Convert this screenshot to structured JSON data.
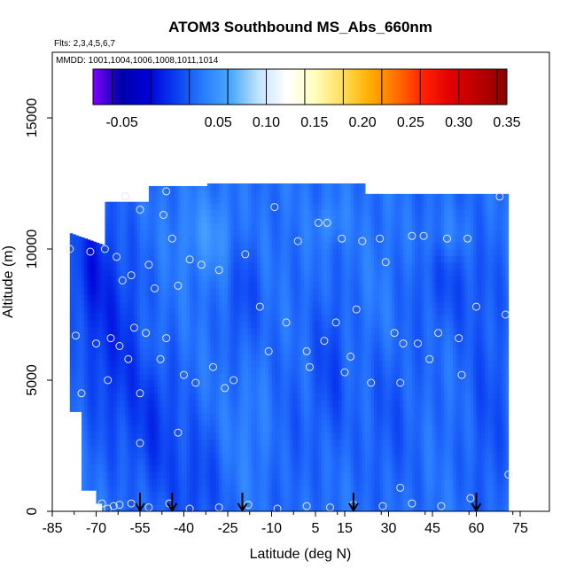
{
  "chart_data": {
    "type": "heatmap",
    "title": "ATOM3 Southbound MS_Abs_660nm",
    "flights_label": "Flts: 2,3,4,5,6,7",
    "dates_label": "MMDD: 1001,1004,1006,1008,1011,1014",
    "xlabel": "Latitude (deg N)",
    "ylabel": "Altitude (m)",
    "xlim": [
      -85,
      85
    ],
    "ylim": [
      0,
      17500
    ],
    "x_ticks": [
      -85,
      -70,
      -55,
      -40,
      -25,
      -10,
      5,
      15,
      30,
      45,
      60,
      75
    ],
    "x_tick_labels": [
      "-85",
      "-70",
      "-55",
      "-40",
      "-25",
      "-10",
      "5",
      "15",
      "30",
      "45",
      "60",
      "75"
    ],
    "y_ticks": [
      0,
      5000,
      10000,
      15000
    ],
    "y_tick_labels": [
      "0",
      "5000",
      "10000",
      "15000"
    ],
    "colorbar": {
      "range": [
        -0.08,
        0.35
      ],
      "tick_values": [
        -0.05,
        0.05,
        0.1,
        0.15,
        0.2,
        0.25,
        0.3,
        0.35
      ],
      "tick_labels": [
        "-0.05",
        "0.05",
        "0.10",
        "0.15",
        "0.20",
        "0.25",
        "0.30",
        "0.35"
      ],
      "segment_colors": [
        "#7f00ff",
        "#0000a8",
        "#0000d8",
        "#0a3ef0",
        "#2a7cff",
        "#4aa8ff",
        "#bfe4ff",
        "#ffffff",
        "#ffffc0",
        "#ffe060",
        "#ffb000",
        "#ff7000",
        "#ff2000",
        "#e00000",
        "#b80000",
        "#8b0000"
      ],
      "divider_values": [
        -0.06,
        -0.02,
        0.02,
        0.06,
        0.1,
        0.14,
        0.18,
        0.22,
        0.26,
        0.3,
        0.34
      ]
    },
    "field": {
      "lat_range": [
        -79,
        71
      ],
      "alt_range": [
        0,
        12500
      ],
      "base_value": 0.03,
      "low_regions": [
        {
          "lat": -64,
          "alt": 6500,
          "lat_w": 10,
          "alt_w": 4000,
          "amp": -0.03
        },
        {
          "lat": -50,
          "alt": 3500,
          "lat_w": 8,
          "alt_w": 3000,
          "amp": -0.025
        },
        {
          "lat": -35,
          "alt": 1000,
          "lat_w": 10,
          "alt_w": 2500,
          "amp": -0.02
        },
        {
          "lat": -72,
          "alt": 9500,
          "lat_w": 6,
          "alt_w": 2500,
          "amp": -0.03
        },
        {
          "lat": -20,
          "alt": 8500,
          "lat_w": 6,
          "alt_w": 3000,
          "amp": -0.02
        },
        {
          "lat": 10,
          "alt": 5500,
          "lat_w": 6,
          "alt_w": 3000,
          "amp": -0.02
        },
        {
          "lat": 50,
          "alt": 9500,
          "lat_w": 12,
          "alt_w": 2500,
          "amp": -0.02
        },
        {
          "lat": 30,
          "alt": 4500,
          "lat_w": 10,
          "alt_w": 4000,
          "amp": -0.015
        },
        {
          "lat": -5,
          "alt": 2500,
          "lat_w": 8,
          "alt_w": 4000,
          "amp": -0.01
        },
        {
          "lat": 64,
          "alt": 4000,
          "lat_w": 8,
          "alt_w": 5000,
          "amp": -0.015
        }
      ],
      "high_regions": [
        {
          "lat": -30,
          "alt": 10500,
          "lat_w": 12,
          "alt_w": 1500,
          "amp": 0.02
        },
        {
          "lat": 50,
          "alt": 10500,
          "lat_w": 10,
          "alt_w": 1200,
          "amp": 0.02
        },
        {
          "lat": 10,
          "alt": 11000,
          "lat_w": 5,
          "alt_w": 800,
          "amp": 0.015
        },
        {
          "lat": -18,
          "alt": 3000,
          "lat_w": 10,
          "alt_w": 3000,
          "amp": 0.01
        },
        {
          "lat": 28,
          "alt": 7500,
          "lat_w": 8,
          "alt_w": 3000,
          "amp": 0.01
        },
        {
          "lat": -50,
          "alt": 6500,
          "lat_w": 4,
          "alt_w": 1500,
          "amp": 0.01
        }
      ]
    },
    "sample_points": [
      [
        -79,
        10000
      ],
      [
        -77,
        6700
      ],
      [
        -75,
        4500
      ],
      [
        -72,
        9900
      ],
      [
        -70,
        6400
      ],
      [
        -67,
        10000
      ],
      [
        -66,
        5000
      ],
      [
        -65,
        6600
      ],
      [
        -63,
        9700
      ],
      [
        -62,
        6300
      ],
      [
        -61,
        8800
      ],
      [
        -59,
        5800
      ],
      [
        -58,
        9000
      ],
      [
        -57,
        7000
      ],
      [
        -55,
        4500
      ],
      [
        -55,
        11500
      ],
      [
        -53,
        6800
      ],
      [
        -52,
        9400
      ],
      [
        -50,
        8500
      ],
      [
        -48,
        5800
      ],
      [
        -47,
        11300
      ],
      [
        -46,
        6600
      ],
      [
        -44,
        10400
      ],
      [
        -42,
        8600
      ],
      [
        -40,
        5200
      ],
      [
        -38,
        9600
      ],
      [
        -36,
        4900
      ],
      [
        -34,
        9400
      ],
      [
        -30,
        5500
      ],
      [
        -28,
        9200
      ],
      [
        -26,
        4700
      ],
      [
        -23,
        5000
      ],
      [
        -19,
        9800
      ],
      [
        -14,
        7800
      ],
      [
        -11,
        6100
      ],
      [
        -9,
        11600
      ],
      [
        -5,
        7200
      ],
      [
        -1,
        10300
      ],
      [
        2,
        6100
      ],
      [
        3,
        5500
      ],
      [
        6,
        11000
      ],
      [
        8,
        6500
      ],
      [
        9,
        11000
      ],
      [
        12,
        7200
      ],
      [
        14,
        10400
      ],
      [
        15,
        5300
      ],
      [
        17,
        5900
      ],
      [
        19,
        7700
      ],
      [
        21,
        10300
      ],
      [
        24,
        4900
      ],
      [
        27,
        10400
      ],
      [
        29,
        9500
      ],
      [
        32,
        6800
      ],
      [
        34,
        4900
      ],
      [
        35,
        6400
      ],
      [
        38,
        10500
      ],
      [
        40,
        6400
      ],
      [
        42,
        10500
      ],
      [
        44,
        5800
      ],
      [
        47,
        6800
      ],
      [
        50,
        10400
      ],
      [
        54,
        6600
      ],
      [
        55,
        5200
      ],
      [
        57,
        10400
      ],
      [
        60,
        7800
      ],
      [
        68,
        12000
      ],
      [
        70,
        7500
      ],
      [
        -68,
        300
      ],
      [
        -66,
        100
      ],
      [
        -62,
        250
      ],
      [
        -58,
        300
      ],
      [
        -52,
        150
      ],
      [
        -45,
        300
      ],
      [
        -38,
        100
      ],
      [
        -28,
        150
      ],
      [
        -18,
        250
      ],
      [
        -8,
        100
      ],
      [
        2,
        200
      ],
      [
        10,
        150
      ],
      [
        18,
        250
      ],
      [
        28,
        200
      ],
      [
        38,
        300
      ],
      [
        48,
        200
      ],
      [
        58,
        500
      ],
      [
        34,
        900
      ],
      [
        71,
        1400
      ],
      [
        -60,
        12000
      ],
      [
        -46,
        12200
      ],
      [
        -55,
        2600
      ],
      [
        -42,
        3000
      ],
      [
        -64,
        200
      ]
    ],
    "flight_markers_lat": [
      -55,
      -44,
      -20,
      18,
      60
    ],
    "data_labels": []
  }
}
